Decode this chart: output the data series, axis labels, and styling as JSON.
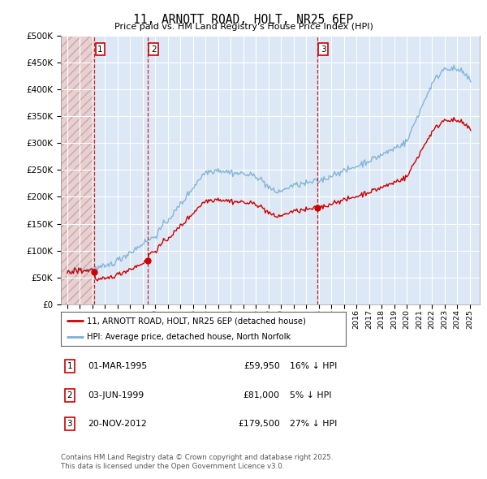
{
  "title": "11, ARNOTT ROAD, HOLT, NR25 6EP",
  "subtitle": "Price paid vs. HM Land Registry's House Price Index (HPI)",
  "legend_line1": "11, ARNOTT ROAD, HOLT, NR25 6EP (detached house)",
  "legend_line2": "HPI: Average price, detached house, North Norfolk",
  "footnote": "Contains HM Land Registry data © Crown copyright and database right 2025.\nThis data is licensed under the Open Government Licence v3.0.",
  "sale_points": [
    {
      "num": 1,
      "date": "01-MAR-1995",
      "price": 59950,
      "pct": "16%",
      "x_year": 1995.17
    },
    {
      "num": 2,
      "date": "03-JUN-1999",
      "price": 81000,
      "pct": "5%",
      "x_year": 1999.42
    },
    {
      "num": 3,
      "date": "20-NOV-2012",
      "price": 179500,
      "pct": "27%",
      "x_year": 2012.89
    }
  ],
  "price_line_color": "#cc0000",
  "hpi_line_color": "#7ab0d4",
  "vline_color": "#cc0000",
  "background_color": "#ffffff",
  "plot_bg_color": "#dce8f5",
  "hatch_region_color": "#e8d0d0",
  "ylim": [
    0,
    500000
  ],
  "yticks": [
    0,
    50000,
    100000,
    150000,
    200000,
    250000,
    300000,
    350000,
    400000,
    450000,
    500000
  ],
  "xlim_start": 1992.5,
  "xlim_end": 2025.8
}
